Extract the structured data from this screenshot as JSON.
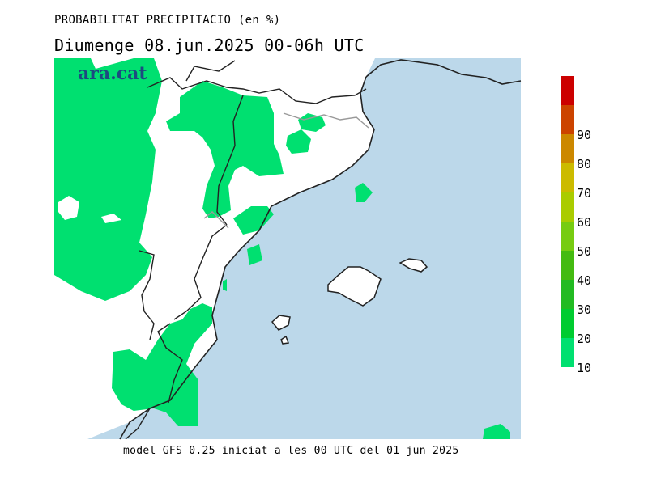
{
  "header": {
    "title": "PROBABILITAT PRECIPITACIO (en %)",
    "subtitle": "Diumenge  08.jun.2025 00-06h UTC"
  },
  "logo": {
    "text": "ara.cat"
  },
  "footer": {
    "text": "model GFS 0.25 iniciat a les 00 UTC del 01 jun 2025"
  },
  "legend": {
    "unit": "%",
    "levels": [
      {
        "label": "10",
        "color": "#00e070"
      },
      {
        "label": "20",
        "color": "#00cc30"
      },
      {
        "label": "30",
        "color": "#22bb22"
      },
      {
        "label": "40",
        "color": "#44bb11"
      },
      {
        "label": "50",
        "color": "#77cc11"
      },
      {
        "label": "60",
        "color": "#aacc00"
      },
      {
        "label": "70",
        "color": "#ccbb00"
      },
      {
        "label": "80",
        "color": "#cc8800"
      },
      {
        "label": "90",
        "color": "#cc4400"
      },
      {
        "label": "",
        "color": "#cc0000"
      }
    ]
  },
  "map": {
    "sea_color": "#bcd8ea",
    "land_color": "#ffffff",
    "precip_color": "#00e070",
    "coast_color": "#222222",
    "border_color": "#999999"
  }
}
